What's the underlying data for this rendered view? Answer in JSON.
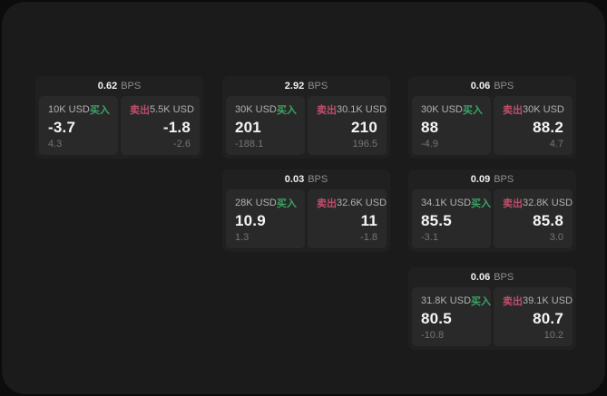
{
  "labels": {
    "bps_unit": "BPS",
    "buy": "买入",
    "sell": "卖出"
  },
  "colors": {
    "buy_green": "#3da364",
    "sell_red": "#bf4e6b",
    "panel_bg": "#1b1b1c",
    "card_bg": "#202021",
    "tile_bg": "#29292a"
  },
  "cards": [
    {
      "col": 0,
      "row": 0,
      "bps": "0.62",
      "buy": {
        "amount": "10K USD",
        "main": "-3.7",
        "sub": "4.3"
      },
      "sell": {
        "amount": "5.5K USD",
        "main": "-1.8",
        "sub": "-2.6"
      }
    },
    {
      "col": 1,
      "row": 0,
      "bps": "2.92",
      "buy": {
        "amount": "30K USD",
        "main": "201",
        "sub": "-188.1"
      },
      "sell": {
        "amount": "30.1K USD",
        "main": "210",
        "sub": "196.5"
      }
    },
    {
      "col": 1,
      "row": 1,
      "bps": "0.03",
      "buy": {
        "amount": "28K USD",
        "main": "10.9",
        "sub": "1.3"
      },
      "sell": {
        "amount": "32.6K USD",
        "main": "11",
        "sub": "-1.8"
      }
    },
    {
      "col": 2,
      "row": 0,
      "bps": "0.06",
      "buy": {
        "amount": "30K USD",
        "main": "88",
        "sub": "-4.9"
      },
      "sell": {
        "amount": "30K USD",
        "main": "88.2",
        "sub": "4.7"
      }
    },
    {
      "col": 2,
      "row": 1,
      "bps": "0.09",
      "buy": {
        "amount": "34.1K USD",
        "main": "85.5",
        "sub": "-3.1"
      },
      "sell": {
        "amount": "32.8K USD",
        "main": "85.8",
        "sub": "3.0"
      }
    },
    {
      "col": 2,
      "row": 2,
      "bps": "0.06",
      "buy": {
        "amount": "31.8K USD",
        "main": "80.5",
        "sub": "-10.8"
      },
      "sell": {
        "amount": "39.1K USD",
        "main": "80.7",
        "sub": "10.2"
      }
    }
  ]
}
